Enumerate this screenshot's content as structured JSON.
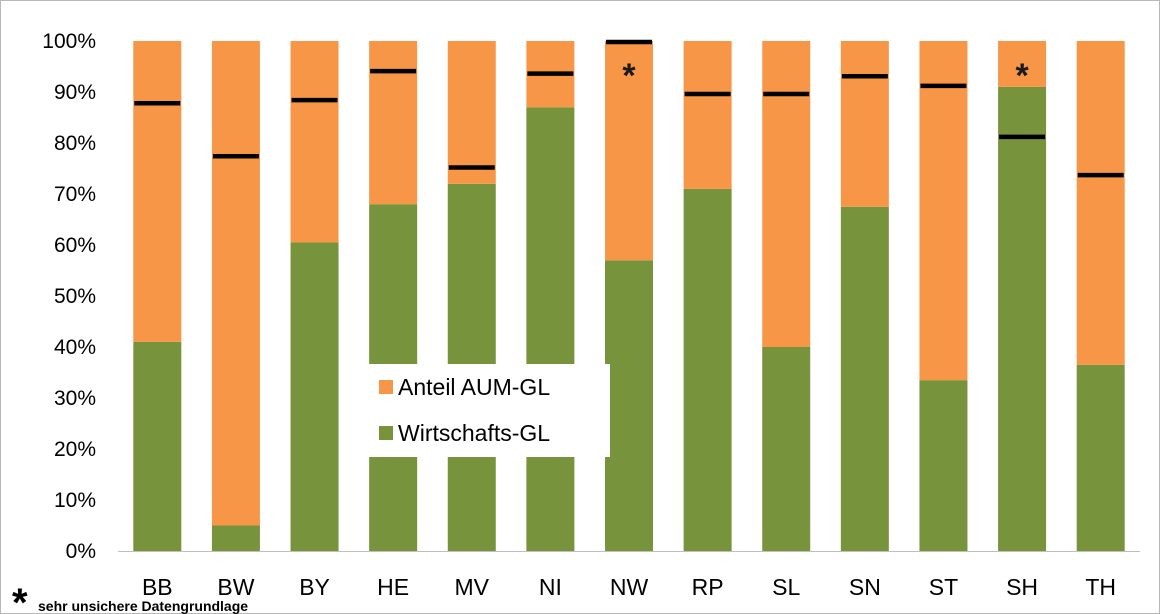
{
  "chart_data": {
    "type": "bar",
    "stacked": true,
    "percent": true,
    "categories": [
      "BB",
      "BW",
      "BY",
      "HE",
      "MV",
      "NI",
      "NW",
      "RP",
      "SL",
      "SN",
      "ST",
      "SH",
      "TH"
    ],
    "series": [
      {
        "name": "Wirtschafts-GL",
        "color": "#77933c",
        "values": [
          41,
          5,
          60.5,
          68,
          72,
          87,
          57,
          71,
          40,
          67.5,
          33.5,
          91,
          36.5
        ]
      },
      {
        "name": "Anteil AUM-GL",
        "color": "#f79646",
        "values": [
          59,
          95,
          39.5,
          32,
          28,
          13,
          43,
          29,
          60,
          32.5,
          66.5,
          9,
          63.5
        ]
      }
    ],
    "markers": {
      "color": "#000000",
      "values": [
        87.8,
        77.4,
        88.4,
        94.1,
        75.2,
        93.6,
        99.8,
        89.6,
        89.6,
        93.1,
        91.2,
        81.2,
        73.7
      ]
    },
    "asterisk_categories": [
      "NW",
      "SH"
    ],
    "asterisk_symbol": "*",
    "ylim": [
      0,
      100
    ],
    "yticks": [
      0,
      10,
      20,
      30,
      40,
      50,
      60,
      70,
      80,
      90,
      100
    ],
    "ytick_labels": [
      "0%",
      "10%",
      "20%",
      "30%",
      "40%",
      "50%",
      "60%",
      "70%",
      "80%",
      "90%",
      "100%"
    ],
    "legend": {
      "placement": "center-left",
      "items": [
        {
          "label": "Anteil AUM-GL",
          "color": "#f79646"
        },
        {
          "label": "Wirtschafts-GL",
          "color": "#77933c"
        }
      ]
    },
    "footnote": {
      "symbol": "*",
      "text": "sehr unsichere  Datengrundlage"
    },
    "title": "",
    "xlabel": "",
    "ylabel": ""
  }
}
